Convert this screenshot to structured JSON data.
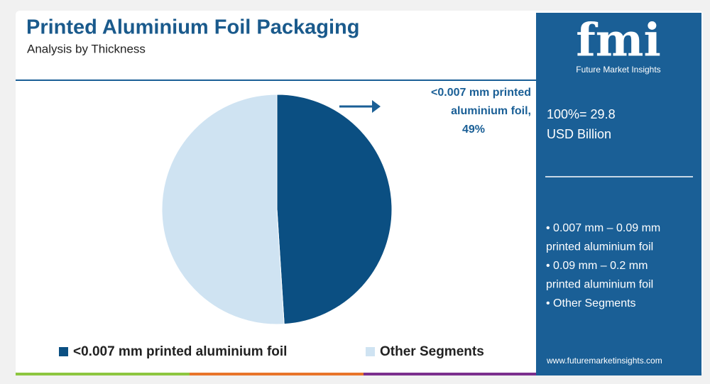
{
  "chart_data": {
    "type": "pie",
    "title": "Printed Aluminium Foil Packaging",
    "subtitle": "Analysis by Thickness",
    "categories": [
      "<0.007 mm printed aluminium foil",
      "Other Segments"
    ],
    "values": [
      49,
      51
    ],
    "value_labels": [
      "49%",
      null
    ],
    "colors": [
      "#0b4f82",
      "#cfe3f2"
    ],
    "annotation": [
      "<0.007 mm printed",
      "aluminium foil,"
    ]
  },
  "side_panel": {
    "logo": "fmi",
    "brand": "Future Market Insights",
    "total": "100%= 29.8",
    "unit": "USD Billion",
    "other_segments": [
      "• 0.007 mm – 0.09 mm",
      "printed aluminium foil",
      "• 0.09 mm – 0.2 mm",
      "printed aluminium foil",
      "• Other Segments"
    ],
    "website": "www.futuremarketinsights.com"
  }
}
